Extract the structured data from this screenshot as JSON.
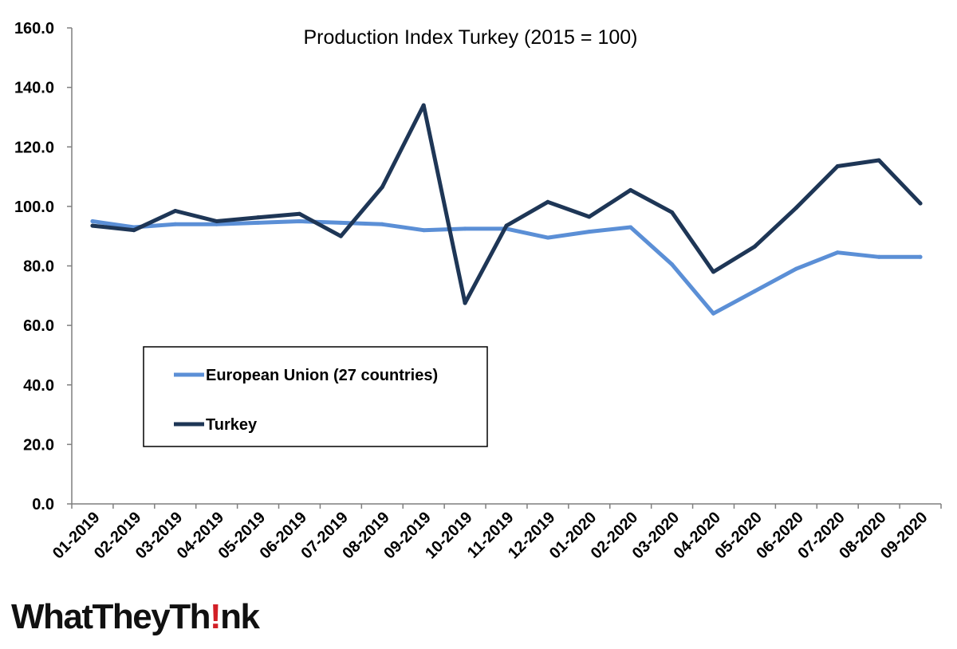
{
  "chart_data": {
    "type": "line",
    "title": "Production Index Turkey (2015 = 100)",
    "xlabel": "",
    "ylabel": "",
    "ylim": [
      0,
      160
    ],
    "yticks": [
      "0.0",
      "20.0",
      "40.0",
      "60.0",
      "80.0",
      "100.0",
      "120.0",
      "140.0",
      "160.0"
    ],
    "categories": [
      "01-2019",
      "02-2019",
      "03-2019",
      "04-2019",
      "05-2019",
      "06-2019",
      "07-2019",
      "08-2019",
      "09-2019",
      "10-2019",
      "11-2019",
      "12-2019",
      "01-2020",
      "02-2020",
      "03-2020",
      "04-2020",
      "05-2020",
      "06-2020",
      "07-2020",
      "08-2020",
      "09-2020"
    ],
    "series": [
      {
        "name": "European Union (27 countries)",
        "color": "#5b8fd6",
        "values": [
          95.0,
          93.0,
          94.0,
          94.0,
          94.5,
          95.0,
          94.5,
          94.0,
          92.0,
          92.5,
          92.5,
          89.5,
          91.5,
          93.0,
          80.5,
          64.0,
          71.5,
          79.0,
          84.5,
          83.0,
          83.0
        ]
      },
      {
        "name": "Turkey",
        "color": "#1e3656",
        "values": [
          93.5,
          92.0,
          98.5,
          95.0,
          96.3,
          97.5,
          90.0,
          106.5,
          134.0,
          67.5,
          93.5,
          101.5,
          96.5,
          105.5,
          98.0,
          78.0,
          86.5,
          99.5,
          113.5,
          115.5,
          101.0
        ]
      }
    ],
    "grid": false,
    "legend": "bottom-left"
  },
  "branding": {
    "logo_prefix": "WhatTheyTh",
    "logo_bang": "!",
    "logo_suffix": "nk",
    "bang_color": "#d21f26"
  }
}
